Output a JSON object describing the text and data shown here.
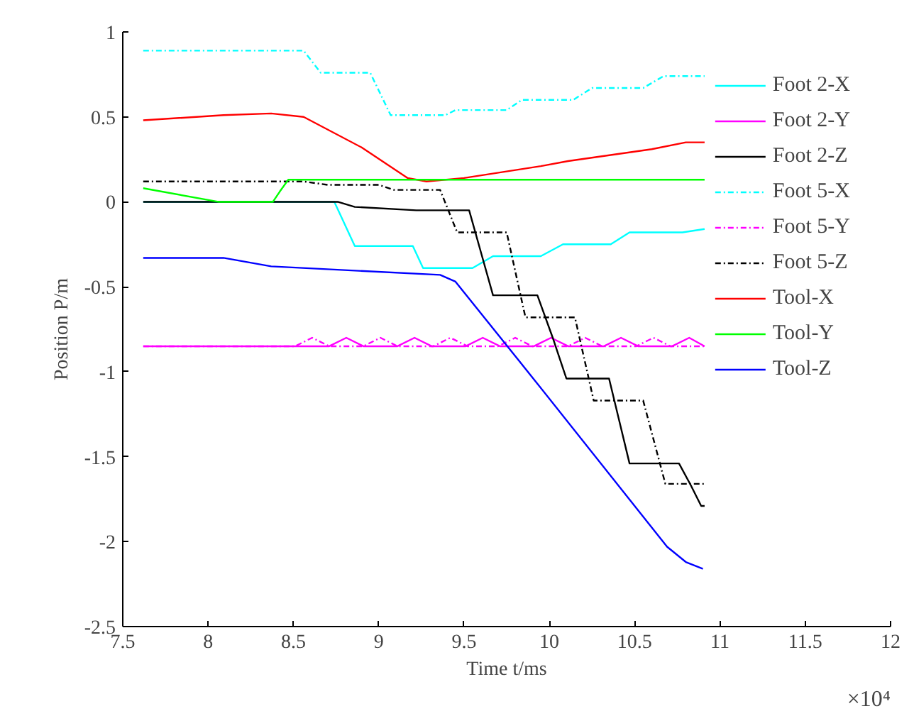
{
  "chart_data": {
    "type": "line",
    "xlabel": "Time t/ms",
    "ylabel": "Position P/m",
    "annotations": [
      "×10⁴"
    ],
    "xlim": [
      7.5,
      12
    ],
    "xticks": [
      7.5,
      8,
      8.5,
      9,
      9.5,
      10,
      10.5,
      11,
      11.5,
      12
    ],
    "ylim": [
      -2.5,
      1
    ],
    "yticks": [
      -2.5,
      -2,
      -1.5,
      -1,
      -0.5,
      0,
      0.5,
      1
    ],
    "grid": false,
    "legend": "top right",
    "marker": "none",
    "series": [
      {
        "name": "Foot 2-X",
        "color": "#00ffff",
        "line_style": "solid",
        "x": [
          7.62,
          8.74,
          8.86,
          9.2,
          9.26,
          9.55,
          9.67,
          9.95,
          10.08,
          10.36,
          10.47,
          10.78,
          10.91
        ],
        "values": [
          0,
          0,
          -0.26,
          -0.26,
          -0.39,
          -0.39,
          -0.32,
          -0.32,
          -0.25,
          -0.25,
          -0.18,
          -0.18,
          -0.16
        ]
      },
      {
        "name": "Foot 2-Y",
        "color": "#ff00ff",
        "line_style": "solid",
        "x": [
          7.62,
          8.71,
          8.81,
          8.91,
          9.11,
          9.21,
          9.31,
          9.51,
          9.61,
          9.71,
          9.91,
          10.01,
          10.11,
          10.32,
          10.42,
          10.52,
          10.72,
          10.82,
          10.91
        ],
        "values": [
          -0.85,
          -0.85,
          -0.8,
          -0.85,
          -0.85,
          -0.8,
          -0.85,
          -0.85,
          -0.8,
          -0.85,
          -0.85,
          -0.8,
          -0.85,
          -0.85,
          -0.8,
          -0.85,
          -0.85,
          -0.8,
          -0.85
        ]
      },
      {
        "name": "Foot 2-Z",
        "color": "#000000",
        "line_style": "solid",
        "x": [
          7.62,
          8.76,
          8.86,
          9.22,
          9.53,
          9.6,
          9.67,
          9.93,
          10.02,
          10.1,
          10.35,
          10.41,
          10.47,
          10.76,
          10.83,
          10.89,
          10.91
        ],
        "values": [
          0,
          0,
          -0.03,
          -0.05,
          -0.05,
          -0.3,
          -0.55,
          -0.55,
          -0.8,
          -1.04,
          -1.04,
          -1.29,
          -1.54,
          -1.54,
          -1.67,
          -1.79,
          -1.79
        ]
      },
      {
        "name": "Foot 5-X",
        "color": "#00ffff",
        "line_style": "dashdot",
        "x": [
          7.62,
          8.56,
          8.66,
          8.95,
          9.07,
          9.39,
          9.45,
          9.75,
          9.84,
          10.14,
          10.25,
          10.55,
          10.67,
          10.91
        ],
        "values": [
          0.89,
          0.89,
          0.76,
          0.76,
          0.51,
          0.51,
          0.54,
          0.54,
          0.6,
          0.6,
          0.67,
          0.67,
          0.74,
          0.74
        ]
      },
      {
        "name": "Foot 5-Y",
        "color": "#ff00ff",
        "line_style": "dashdot",
        "x": [
          7.62,
          8.51,
          8.61,
          8.71,
          8.91,
          9.01,
          9.11,
          9.32,
          9.42,
          9.52,
          9.7,
          9.8,
          9.9,
          10.11,
          10.21,
          10.31,
          10.51,
          10.61,
          10.71,
          10.91
        ],
        "values": [
          -0.85,
          -0.85,
          -0.8,
          -0.85,
          -0.85,
          -0.8,
          -0.85,
          -0.85,
          -0.8,
          -0.85,
          -0.85,
          -0.8,
          -0.85,
          -0.85,
          -0.8,
          -0.85,
          -0.85,
          -0.8,
          -0.85,
          -0.85
        ]
      },
      {
        "name": "Foot 5-Z",
        "color": "#000000",
        "line_style": "dashdot",
        "x": [
          7.62,
          8.56,
          8.7,
          9.0,
          9.09,
          9.36,
          9.46,
          9.75,
          9.86,
          10.15,
          10.26,
          10.55,
          10.68,
          10.91
        ],
        "values": [
          0.12,
          0.12,
          0.1,
          0.1,
          0.07,
          0.07,
          -0.18,
          -0.18,
          -0.68,
          -0.68,
          -1.17,
          -1.17,
          -1.66,
          -1.66
        ]
      },
      {
        "name": "Tool-X",
        "color": "#ff0000",
        "line_style": "solid",
        "x": [
          7.62,
          8.09,
          8.37,
          8.56,
          8.9,
          9.17,
          9.28,
          9.5,
          9.95,
          10.11,
          10.6,
          10.8,
          10.91
        ],
        "values": [
          0.48,
          0.51,
          0.52,
          0.5,
          0.32,
          0.14,
          0.12,
          0.14,
          0.21,
          0.24,
          0.31,
          0.35,
          0.35
        ]
      },
      {
        "name": "Tool-Y",
        "color": "#00ff00",
        "line_style": "solid",
        "x": [
          7.62,
          8.06,
          8.38,
          8.42,
          8.47,
          10.91
        ],
        "values": [
          0.08,
          0,
          0,
          0.06,
          0.13,
          0.13
        ]
      },
      {
        "name": "Tool-Z",
        "color": "#0000ff",
        "line_style": "solid",
        "x": [
          7.62,
          8.09,
          8.37,
          9.36,
          9.45,
          9.89,
          10.69,
          10.8,
          10.9
        ],
        "values": [
          -0.33,
          -0.33,
          -0.38,
          -0.43,
          -0.47,
          -1.02,
          -2.03,
          -2.12,
          -2.16
        ]
      }
    ]
  }
}
